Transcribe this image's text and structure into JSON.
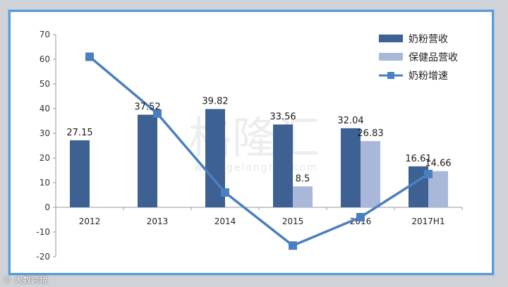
{
  "chart_data": {
    "type": "bar",
    "categories": [
      "2012",
      "2013",
      "2014",
      "2015",
      "2016",
      "2017H1"
    ],
    "ylim": [
      -20,
      70
    ],
    "yticks": [
      -20,
      -10,
      0,
      10,
      20,
      30,
      40,
      50,
      60,
      70
    ],
    "grid": false,
    "legend_position": "top-right",
    "series": [
      {
        "name": "奶粉营收",
        "kind": "bar",
        "color": "#3c6192",
        "values": [
          27.15,
          37.52,
          39.82,
          33.56,
          32.04,
          16.61
        ],
        "labels": [
          "27.15",
          "37.52",
          "39.82",
          "33.56",
          "32.04",
          "16.61"
        ]
      },
      {
        "name": "保健品营收",
        "kind": "bar",
        "color": "#a9b8d8",
        "values": [
          null,
          null,
          null,
          8.5,
          26.83,
          14.66
        ],
        "labels": [
          null,
          null,
          null,
          "8.5",
          "26.83",
          "14.66"
        ]
      },
      {
        "name": "奶粉增速",
        "kind": "line",
        "color": "#4a7fc1",
        "values": [
          61,
          38,
          6,
          -15.5,
          -4,
          13.5
        ]
      }
    ]
  },
  "watermark": {
    "logo": "格隆汇",
    "url": "www.gelonghui.com"
  },
  "footer": {
    "text": "© 大数跨境"
  }
}
